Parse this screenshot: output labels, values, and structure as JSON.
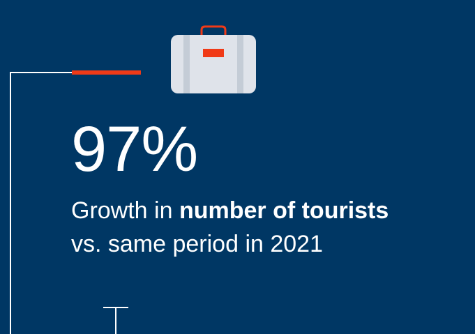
{
  "stat": {
    "value": "97%",
    "description_prefix": "Growth in ",
    "description_bold": "number of tourists",
    "description_line2": "vs. same period in 2021"
  },
  "icons": {
    "main": "suitcase-icon"
  },
  "colors": {
    "background": "#003764",
    "accent": "#f03a17",
    "text": "#ffffff",
    "suitcase_body": "#dfe3ea",
    "suitcase_straps": "#c4ccd6"
  }
}
